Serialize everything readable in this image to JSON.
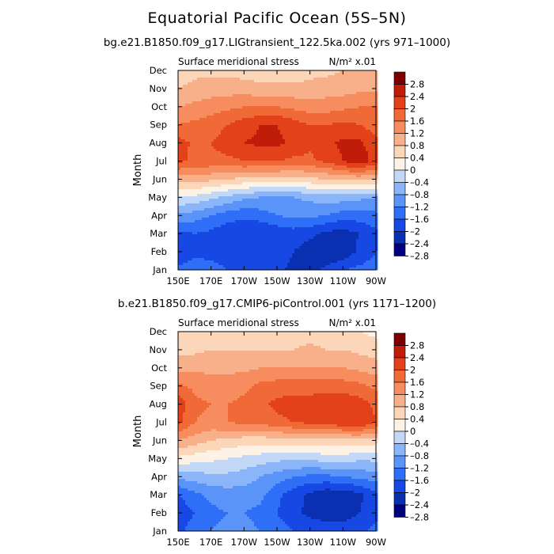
{
  "figure_title": "Equatorial Pacific Ocean (5S–5N)",
  "chart_data": [
    {
      "type": "heatmap",
      "title": "bg.e21.B1850.f09_g17.LIGtransient_122.5ka.002 (yrs 971–1000)",
      "subtitle_left": "Surface meridional stress",
      "subtitle_right": "N/m² x.01",
      "xlabel": "",
      "ylabel": "Month",
      "x_tick_labels": [
        "150E",
        "170E",
        "170W",
        "150W",
        "130W",
        "110W",
        "90W"
      ],
      "x_lon": [
        150,
        170,
        190,
        210,
        230,
        250,
        270
      ],
      "y_tick_labels": [
        "Jan",
        "Feb",
        "Mar",
        "Apr",
        "May",
        "Jun",
        "Jul",
        "Aug",
        "Sep",
        "Oct",
        "Nov",
        "Dec"
      ],
      "xlim": [
        150,
        270
      ],
      "ylim": [
        1,
        12
      ],
      "levels": [
        -2.8,
        -2.4,
        -2,
        -1.6,
        -1.2,
        -0.8,
        -0.4,
        0,
        0.4,
        0.8,
        1.2,
        1.6,
        2,
        2.4,
        2.8
      ],
      "colorbar_labels": [
        "2.8",
        "2.4",
        "2",
        "1.6",
        "1.2",
        "0.8",
        "0.4",
        "0",
        "–0.4",
        "–0.8",
        "–1.2",
        "–1.6",
        "–2",
        "–2.4",
        "–2.8"
      ],
      "values": [
        [
          -1.9,
          -1.8,
          -1.9,
          -2.0,
          -2.0,
          -2.1,
          -2.3,
          -2.5,
          -2.5,
          -2.3,
          -2.0,
          -1.9,
          -1.8
        ],
        [
          -2.3,
          -2.1,
          -2.1,
          -2.1,
          -2.1,
          -2.1,
          -2.2,
          -2.4,
          -2.6,
          -2.8,
          -2.7,
          -2.3,
          -2.0
        ],
        [
          -2.1,
          -2.0,
          -2.1,
          -2.3,
          -2.4,
          -2.4,
          -2.3,
          -2.2,
          -2.3,
          -2.5,
          -2.6,
          -2.4,
          -2.1
        ],
        [
          -1.3,
          -1.4,
          -1.6,
          -1.8,
          -1.9,
          -1.8,
          -1.6,
          -1.5,
          -1.5,
          -1.6,
          -1.8,
          -1.8,
          -1.7
        ],
        [
          -0.4,
          -0.5,
          -0.7,
          -0.9,
          -1.1,
          -1.2,
          -1.2,
          -1.2,
          -1.1,
          -1.0,
          -1.0,
          -1.1,
          -1.2
        ],
        [
          0.6,
          0.6,
          0.5,
          0.4,
          0.3,
          0.2,
          0.2,
          0.2,
          0.3,
          0.4,
          0.5,
          0.5,
          0.5
        ],
        [
          1.7,
          1.5,
          1.5,
          1.5,
          1.6,
          1.6,
          1.6,
          1.5,
          1.5,
          1.7,
          2.0,
          2.3,
          1.8
        ],
        [
          1.8,
          1.5,
          1.6,
          1.8,
          2.0,
          2.1,
          2.1,
          1.9,
          1.7,
          1.9,
          2.1,
          2.1,
          1.7
        ],
        [
          1.2,
          1.3,
          1.4,
          1.6,
          1.8,
          2.0,
          2.0,
          1.8,
          1.6,
          1.6,
          1.7,
          1.6,
          1.4
        ],
        [
          0.8,
          0.9,
          1.0,
          1.1,
          1.2,
          1.2,
          1.2,
          1.1,
          1.0,
          1.0,
          1.1,
          1.2,
          1.2
        ],
        [
          0.4,
          0.5,
          0.6,
          0.6,
          0.6,
          0.5,
          0.5,
          0.5,
          0.5,
          0.6,
          0.6,
          0.7,
          0.7
        ],
        [
          0.2,
          0.3,
          0.3,
          0.3,
          0.2,
          0.2,
          0.2,
          0.2,
          0.3,
          0.3,
          0.4,
          0.4,
          0.4
        ]
      ]
    },
    {
      "type": "heatmap",
      "title": "b.e21.B1850.f09_g17.CMIP6-piControl.001 (yrs 1171–1200)",
      "subtitle_left": "Surface meridional stress",
      "subtitle_right": "N/m² x.01",
      "xlabel": "",
      "ylabel": "Month",
      "x_tick_labels": [
        "150E",
        "170E",
        "170W",
        "150W",
        "130W",
        "110W",
        "90W"
      ],
      "x_lon": [
        150,
        170,
        190,
        210,
        230,
        250,
        270
      ],
      "y_tick_labels": [
        "Jan",
        "Feb",
        "Mar",
        "Apr",
        "May",
        "Jun",
        "Jul",
        "Aug",
        "Sep",
        "Oct",
        "Nov",
        "Dec"
      ],
      "xlim": [
        150,
        270
      ],
      "ylim": [
        1,
        12
      ],
      "levels": [
        -2.8,
        -2.4,
        -2,
        -1.6,
        -1.2,
        -0.8,
        -0.4,
        0,
        0.4,
        0.8,
        1.2,
        1.6,
        2,
        2.4,
        2.8
      ],
      "colorbar_labels": [
        "2.8",
        "2.4",
        "2",
        "1.6",
        "1.2",
        "0.8",
        "0.4",
        "0",
        "–0.4",
        "–0.8",
        "–1.2",
        "–1.6",
        "–2",
        "–2.4",
        "–2.8"
      ],
      "values": [
        [
          -2.1,
          -1.8,
          -1.6,
          -1.5,
          -1.5,
          -1.6,
          -1.8,
          -2.0,
          -2.1,
          -2.2,
          -2.2,
          -2.1,
          -1.9
        ],
        [
          -2.3,
          -2.0,
          -1.7,
          -1.6,
          -1.6,
          -1.7,
          -2.0,
          -2.3,
          -2.5,
          -2.6,
          -2.6,
          -2.4,
          -2.1
        ],
        [
          -2.0,
          -1.7,
          -1.5,
          -1.4,
          -1.4,
          -1.5,
          -1.9,
          -2.2,
          -2.5,
          -2.7,
          -2.7,
          -2.5,
          -2.1
        ],
        [
          -1.1,
          -1.0,
          -0.9,
          -0.9,
          -1.0,
          -1.2,
          -1.4,
          -1.6,
          -1.7,
          -1.7,
          -1.6,
          -1.5,
          -1.4
        ],
        [
          -0.1,
          -0.2,
          -0.3,
          -0.4,
          -0.5,
          -0.6,
          -0.7,
          -0.7,
          -0.7,
          -0.6,
          -0.6,
          -0.7,
          -0.7
        ],
        [
          0.8,
          0.6,
          0.4,
          0.3,
          0.2,
          0.2,
          0.2,
          0.3,
          0.3,
          0.3,
          0.3,
          0.3,
          0.2
        ],
        [
          1.7,
          1.2,
          1.1,
          1.2,
          1.3,
          1.3,
          1.5,
          1.6,
          1.7,
          1.8,
          1.9,
          2.0,
          1.6
        ],
        [
          1.9,
          1.3,
          1.2,
          1.2,
          1.3,
          1.5,
          1.7,
          1.8,
          1.8,
          1.9,
          1.9,
          1.8,
          1.5
        ],
        [
          1.3,
          1.1,
          1.0,
          1.0,
          1.1,
          1.3,
          1.4,
          1.4,
          1.4,
          1.4,
          1.4,
          1.3,
          1.1
        ],
        [
          0.7,
          0.7,
          0.7,
          0.7,
          0.7,
          0.8,
          0.8,
          0.8,
          0.8,
          0.8,
          0.8,
          0.7,
          0.6
        ],
        [
          0.3,
          0.3,
          0.4,
          0.4,
          0.4,
          0.4,
          0.4,
          0.4,
          0.5,
          0.4,
          0.4,
          0.3,
          0.2
        ],
        [
          0.0,
          0.1,
          0.2,
          0.2,
          0.2,
          0.2,
          0.2,
          0.2,
          0.2,
          0.2,
          0.1,
          0.0,
          -0.1
        ]
      ]
    }
  ],
  "palette": [
    "#00007f",
    "#0a2fb0",
    "#1848e3",
    "#2f6ff7",
    "#5a94f8",
    "#8bb5f9",
    "#c3d8f7",
    "#fcf2e6",
    "#fcd6b8",
    "#f8b08a",
    "#f78c5f",
    "#f06a37",
    "#e34119",
    "#bf1d0a",
    "#7d0000"
  ]
}
